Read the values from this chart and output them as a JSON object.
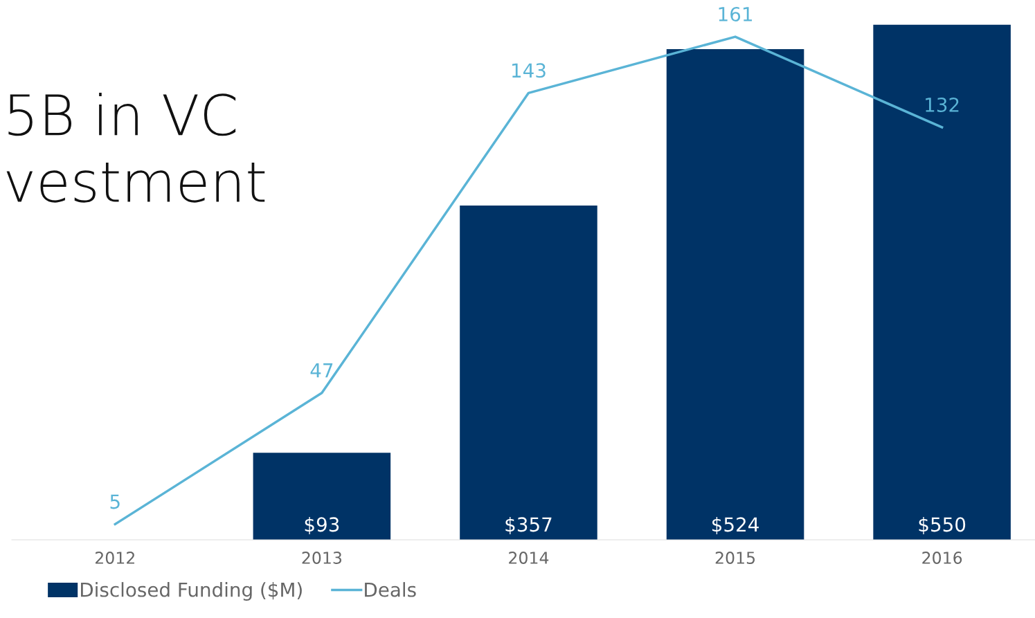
{
  "chart_data": {
    "type": "bar",
    "categories": [
      "2012",
      "2013",
      "2014",
      "2015",
      "2016"
    ],
    "series": [
      {
        "name": "Disclosed Funding ($M)",
        "color": "#003366",
        "values": [
          null,
          93,
          357,
          524,
          550
        ],
        "value_labels": [
          null,
          "$93",
          "$357",
          "$524",
          "$550"
        ]
      },
      {
        "name": "Deals",
        "type": "line",
        "axis": "y2",
        "color": "#5ab4d6",
        "values": [
          5,
          47,
          143,
          161,
          132
        ],
        "data_labels": true
      }
    ],
    "tick_labels": "x",
    "grid": false,
    "legend": "bottom left",
    "marker": "none",
    "line_style": "solid",
    "annotations": [
      "5B in VC\nvestment"
    ]
  }
}
